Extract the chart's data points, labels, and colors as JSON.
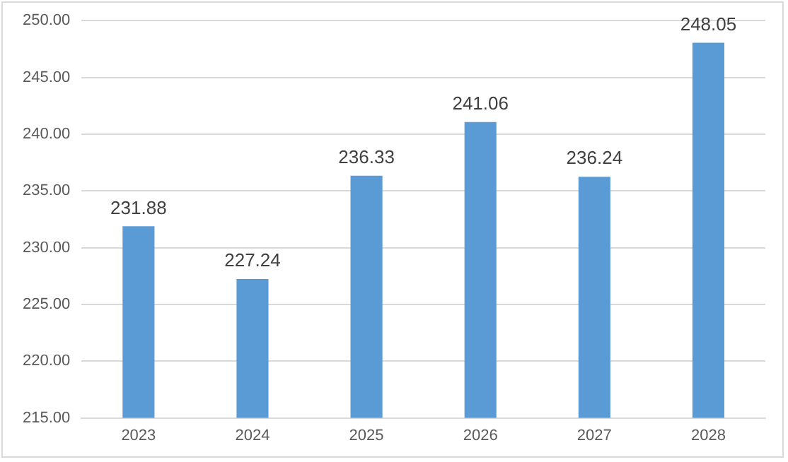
{
  "chart_data": {
    "type": "bar",
    "categories": [
      "2023",
      "2024",
      "2025",
      "2026",
      "2027",
      "2028"
    ],
    "values": [
      231.88,
      227.24,
      236.33,
      241.06,
      236.24,
      248.05
    ],
    "color": "#5b9bd5",
    "ylim": [
      215,
      250
    ],
    "yticks": [
      {
        "value": 215,
        "label": "215.00"
      },
      {
        "value": 220,
        "label": "220.00"
      },
      {
        "value": 225,
        "label": "225.00"
      },
      {
        "value": 230,
        "label": "230.00"
      },
      {
        "value": 235,
        "label": "235.00"
      },
      {
        "value": 240,
        "label": "240.00"
      },
      {
        "value": 245,
        "label": "245.00"
      },
      {
        "value": 250,
        "label": "250.00"
      }
    ],
    "grid": "y",
    "data_labels": true
  }
}
